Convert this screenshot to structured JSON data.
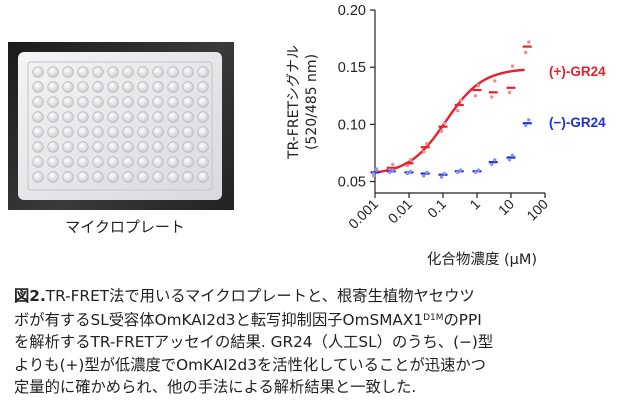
{
  "photo": {
    "label": "マイクロプレート",
    "wells": {
      "rows": 8,
      "cols": 12
    }
  },
  "chart_data": {
    "type": "scatter",
    "ylabel_line1": "TR-FRETシグナル",
    "ylabel_line2": "(520/485 nm)",
    "xlabel": "化合物濃度 (μM)",
    "x_scale": "log",
    "x_ticks": [
      "0.001",
      "0.01",
      "0.1",
      "1",
      "10",
      "100"
    ],
    "x_tick_values": [
      0.001,
      0.01,
      0.1,
      1,
      10,
      100
    ],
    "y_ticks": [
      "0.05",
      "0.10",
      "0.15",
      "0.20"
    ],
    "y_tick_values": [
      0.05,
      0.1,
      0.15,
      0.2
    ],
    "ylim": [
      0.04,
      0.2
    ],
    "series": [
      {
        "name": "(+)-GR24",
        "color": "#e8202a",
        "x": [
          0.001,
          0.003,
          0.01,
          0.03,
          0.1,
          0.3,
          1,
          3,
          10,
          30
        ],
        "means": [
          0.058,
          0.062,
          0.066,
          0.08,
          0.098,
          0.117,
          0.13,
          0.128,
          0.132,
          0.168
        ],
        "points": [
          [
            0.055,
            0.061
          ],
          [
            0.06,
            0.065
          ],
          [
            0.064,
            0.069
          ],
          [
            0.076,
            0.083
          ],
          [
            0.094,
            0.101
          ],
          [
            0.112,
            0.121
          ],
          [
            0.125,
            0.134
          ],
          [
            0.124,
            0.138
          ],
          [
            0.128,
            0.151
          ],
          [
            0.163,
            0.172
          ]
        ],
        "fit": {
          "bottom": 0.056,
          "top": 0.149,
          "ec50": 0.12,
          "hill": 0.8
        }
      },
      {
        "name": "(−)-GR24",
        "color": "#1f2fd6",
        "x": [
          0.001,
          0.003,
          0.01,
          0.03,
          0.1,
          0.3,
          1,
          3,
          10,
          30
        ],
        "means": [
          0.058,
          0.059,
          0.058,
          0.057,
          0.056,
          0.059,
          0.059,
          0.067,
          0.071,
          0.101
        ],
        "points": [
          [
            0.057,
            0.06
          ],
          [
            0.058,
            0.06
          ],
          [
            0.057,
            0.059
          ],
          [
            0.055,
            0.058
          ],
          [
            0.054,
            0.057
          ],
          [
            0.058,
            0.06
          ],
          [
            0.058,
            0.06
          ],
          [
            0.065,
            0.069
          ],
          [
            0.069,
            0.073
          ],
          [
            0.099,
            0.104
          ]
        ]
      }
    ]
  },
  "caption": {
    "label": "図2.",
    "line1": "TR-FRET法で用いるマイクロプレートと、根寄生植物ヤセウツ",
    "line2_a": "ボが有するSL受容体OmKAI2d3と転写抑制因子OmSMAX1",
    "line2_sup": "D1M",
    "line2_b": "のPPI",
    "line3": "を解析するTR-FRETアッセイの結果. GR24（人工SL）のうち、(−)型",
    "line4": "よりも(+)型が低濃度でOmKAI2d3を活性化していることが迅速かつ",
    "line5": "定量的に確かめられ、他の手法による解析結果と一致した."
  }
}
